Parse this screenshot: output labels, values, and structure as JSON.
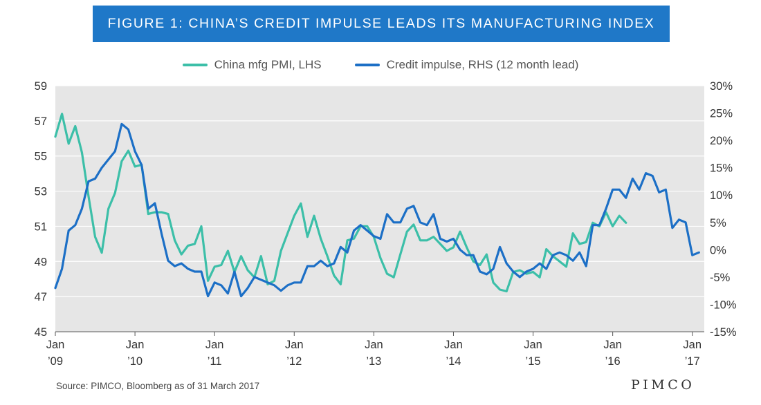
{
  "title": "FIGURE 1: CHINA’S CREDIT IMPULSE LEADS ITS MANUFACTURING INDEX",
  "source": "Source:  PIMCO, Bloomberg as of 31 March 2017",
  "brand": "PIMCO",
  "colors": {
    "banner": "#1f78c8",
    "pmi": "#3cbfa8",
    "credit": "#1c6fc6",
    "plot_bg": "#e6e6e6"
  },
  "chart_data": {
    "type": "line",
    "title": "FIGURE 1: CHINA’S CREDIT IMPULSE LEADS ITS MANUFACTURING INDEX",
    "grid": true,
    "legend_position": "top-center",
    "x_ticks": [
      {
        "x": 2009,
        "line1": "Jan",
        "line2": "’09"
      },
      {
        "x": 2010,
        "line1": "Jan",
        "line2": "’10"
      },
      {
        "x": 2011,
        "line1": "Jan",
        "line2": "’11"
      },
      {
        "x": 2012,
        "line1": "Jan",
        "line2": "’12"
      },
      {
        "x": 2013,
        "line1": "Jan",
        "line2": "’13"
      },
      {
        "x": 2014,
        "line1": "Jan",
        "line2": "’14"
      },
      {
        "x": 2015,
        "line1": "Jan",
        "line2": "’15"
      },
      {
        "x": 2016,
        "line1": "Jan",
        "line2": "’16"
      },
      {
        "x": 2017,
        "line1": "Jan",
        "line2": "’17"
      }
    ],
    "xlim": [
      2009,
      2017.15
    ],
    "y_left": {
      "ticks": [
        "45",
        "47",
        "49",
        "51",
        "53",
        "55",
        "57",
        "59"
      ],
      "lim": [
        45,
        59
      ]
    },
    "y_right": {
      "ticks": [
        "-15%",
        "-10%",
        "-5%",
        "0%",
        "5%",
        "10%",
        "15%",
        "20%",
        "25%",
        "30%"
      ],
      "lim": [
        -15,
        30
      ]
    },
    "series": [
      {
        "name": "China mfg PMI, LHS",
        "axis": "left",
        "start": 2009.0,
        "step": 0.08333,
        "values": [
          56.1,
          57.4,
          55.7,
          56.7,
          55.2,
          52.7,
          50.4,
          49.5,
          52,
          52.9,
          54.7,
          55.3,
          54.4,
          54.5,
          51.7,
          51.8,
          51.8,
          51.7,
          50.2,
          49.4,
          49.9,
          50,
          51,
          47.9,
          48.7,
          48.8,
          49.6,
          48.4,
          49.3,
          48.5,
          48.1,
          49.3,
          47.7,
          47.9,
          49.6,
          50.6,
          51.6,
          52.3,
          50.4,
          51.6,
          50.3,
          49.3,
          48.2,
          47.7,
          50.2,
          50.3,
          51,
          51,
          50.4,
          49.2,
          48.3,
          48.1,
          49.4,
          50.7,
          51.1,
          50.2,
          50.2,
          50.4,
          50,
          49.6,
          49.8,
          50.7,
          49.8,
          49,
          48.8,
          49.4,
          47.8,
          47.4,
          47.3,
          48.4,
          48.5,
          48.3,
          48.4,
          48.1,
          49.7,
          49.3,
          49,
          48.7,
          50.6,
          50,
          50.1,
          51.2,
          51,
          51.8,
          51,
          51.6,
          51.2
        ]
      },
      {
        "name": "Credit impulse, RHS (12 month lead)",
        "axis": "right",
        "start": 2009.0,
        "step": 0.08333,
        "values": [
          -7,
          -3.5,
          3.5,
          4.5,
          7.5,
          12.5,
          13,
          15,
          16.5,
          18,
          23,
          22,
          18,
          15.5,
          7.5,
          8.5,
          3,
          -2,
          -3,
          -2.5,
          -3.5,
          -4,
          -4,
          -8.5,
          -6,
          -6.5,
          -8,
          -4,
          -8.5,
          -7,
          -5,
          -5.5,
          -6,
          -6.5,
          -7.5,
          -6.5,
          -6,
          -6,
          -3,
          -3,
          -2,
          -3,
          -2.5,
          0.5,
          -0.5,
          3.5,
          4.5,
          3.5,
          2.5,
          2,
          6.5,
          5,
          5,
          7.5,
          8,
          5,
          4.5,
          6.5,
          2,
          1.5,
          2,
          0,
          -1,
          -1,
          -4,
          -4.5,
          -3.5,
          0.5,
          -2.5,
          -4,
          -5,
          -4,
          -3.5,
          -2.5,
          -3.5,
          -1,
          -0.5,
          -1,
          -2,
          -0.5,
          -3,
          4.5,
          4.5,
          7.5,
          11,
          11,
          9.5,
          13,
          11,
          14,
          13.5,
          10.5,
          11,
          4,
          5.5,
          5,
          -1,
          -0.5
        ]
      }
    ]
  }
}
